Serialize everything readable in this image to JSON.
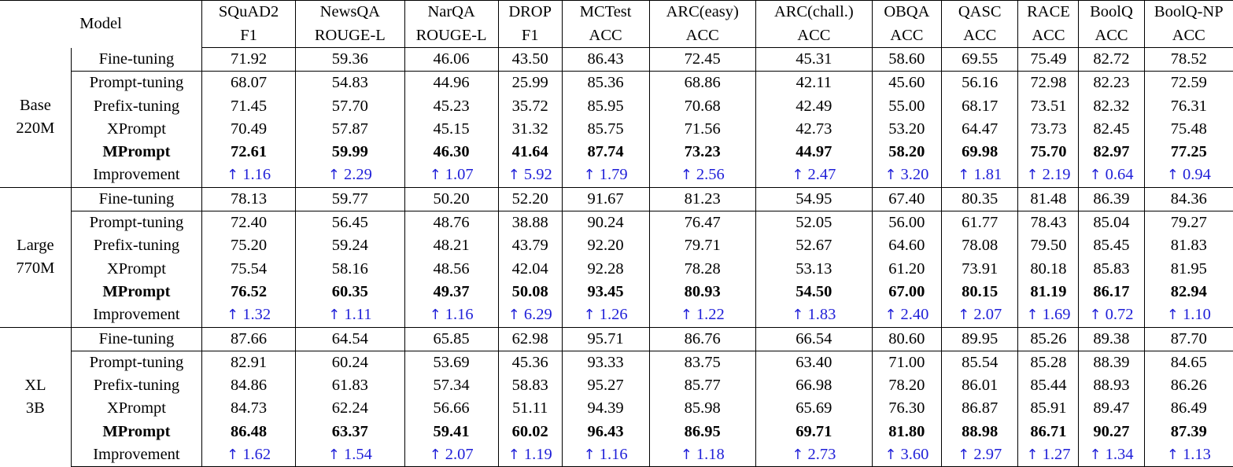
{
  "header": {
    "model_label": "Model",
    "columns": [
      {
        "name": "SQuAD2",
        "metric": "F1"
      },
      {
        "name": "NewsQA",
        "metric": "ROUGE-L"
      },
      {
        "name": "NarQA",
        "metric": "ROUGE-L"
      },
      {
        "name": "DROP",
        "metric": "F1"
      },
      {
        "name": "MCTest",
        "metric": "ACC"
      },
      {
        "name": "ARC(easy)",
        "metric": "ACC"
      },
      {
        "name": "ARC(chall.)",
        "metric": "ACC"
      },
      {
        "name": "OBQA",
        "metric": "ACC"
      },
      {
        "name": "QASC",
        "metric": "ACC"
      },
      {
        "name": "RACE",
        "metric": "ACC"
      },
      {
        "name": "BoolQ",
        "metric": "ACC"
      },
      {
        "name": "BoolQ-NP",
        "metric": "ACC"
      }
    ]
  },
  "arrow_symbol": "↑",
  "groups": [
    {
      "size": "Base",
      "params": "220M",
      "rows": [
        {
          "method": "Fine-tuning",
          "bold": false,
          "improvement": false,
          "values": [
            "71.92",
            "59.36",
            "46.06",
            "43.50",
            "86.43",
            "72.45",
            "45.31",
            "58.60",
            "69.55",
            "75.49",
            "82.72",
            "78.52"
          ]
        },
        {
          "method": "Prompt-tuning",
          "bold": false,
          "improvement": false,
          "values": [
            "68.07",
            "54.83",
            "44.96",
            "25.99",
            "85.36",
            "68.86",
            "42.11",
            "45.60",
            "56.16",
            "72.98",
            "82.23",
            "72.59"
          ]
        },
        {
          "method": "Prefix-tuning",
          "bold": false,
          "improvement": false,
          "values": [
            "71.45",
            "57.70",
            "45.23",
            "35.72",
            "85.95",
            "70.68",
            "42.49",
            "55.00",
            "68.17",
            "73.51",
            "82.32",
            "76.31"
          ]
        },
        {
          "method": "XPrompt",
          "bold": false,
          "improvement": false,
          "values": [
            "70.49",
            "57.87",
            "45.15",
            "31.32",
            "85.75",
            "71.56",
            "42.73",
            "53.20",
            "64.47",
            "73.73",
            "82.45",
            "75.48"
          ]
        },
        {
          "method": "MPrompt",
          "bold": true,
          "improvement": false,
          "values": [
            "72.61",
            "59.99",
            "46.30",
            "41.64",
            "87.74",
            "73.23",
            "44.97",
            "58.20",
            "69.98",
            "75.70",
            "82.97",
            "77.25"
          ]
        },
        {
          "method": "Improvement",
          "bold": false,
          "improvement": true,
          "values": [
            "1.16",
            "2.29",
            "1.07",
            "5.92",
            "1.79",
            "2.56",
            "2.47",
            "3.20",
            "1.81",
            "2.19",
            "0.64",
            "0.94"
          ]
        }
      ]
    },
    {
      "size": "Large",
      "params": "770M",
      "rows": [
        {
          "method": "Fine-tuning",
          "bold": false,
          "improvement": false,
          "values": [
            "78.13",
            "59.77",
            "50.20",
            "52.20",
            "91.67",
            "81.23",
            "54.95",
            "67.40",
            "80.35",
            "81.48",
            "86.39",
            "84.36"
          ]
        },
        {
          "method": "Prompt-tuning",
          "bold": false,
          "improvement": false,
          "values": [
            "72.40",
            "56.45",
            "48.76",
            "38.88",
            "90.24",
            "76.47",
            "52.05",
            "56.00",
            "61.77",
            "78.43",
            "85.04",
            "79.27"
          ]
        },
        {
          "method": "Prefix-tuning",
          "bold": false,
          "improvement": false,
          "values": [
            "75.20",
            "59.24",
            "48.21",
            "43.79",
            "92.20",
            "79.71",
            "52.67",
            "64.60",
            "78.08",
            "79.50",
            "85.45",
            "81.83"
          ]
        },
        {
          "method": "XPrompt",
          "bold": false,
          "improvement": false,
          "values": [
            "75.54",
            "58.16",
            "48.56",
            "42.04",
            "92.28",
            "78.28",
            "53.13",
            "61.20",
            "73.91",
            "80.18",
            "85.83",
            "81.95"
          ]
        },
        {
          "method": "MPrompt",
          "bold": true,
          "improvement": false,
          "values": [
            "76.52",
            "60.35",
            "49.37",
            "50.08",
            "93.45",
            "80.93",
            "54.50",
            "67.00",
            "80.15",
            "81.19",
            "86.17",
            "82.94"
          ]
        },
        {
          "method": "Improvement",
          "bold": false,
          "improvement": true,
          "values": [
            "1.32",
            "1.11",
            "1.16",
            "6.29",
            "1.26",
            "1.22",
            "1.83",
            "2.40",
            "2.07",
            "1.69",
            "0.72",
            "1.10"
          ]
        }
      ]
    },
    {
      "size": "XL",
      "params": "3B",
      "rows": [
        {
          "method": "Fine-tuning",
          "bold": false,
          "improvement": false,
          "values": [
            "87.66",
            "64.54",
            "65.85",
            "62.98",
            "95.71",
            "86.76",
            "66.54",
            "80.60",
            "89.95",
            "85.26",
            "89.38",
            "87.70"
          ]
        },
        {
          "method": "Prompt-tuning",
          "bold": false,
          "improvement": false,
          "values": [
            "82.91",
            "60.24",
            "53.69",
            "45.36",
            "93.33",
            "83.75",
            "63.40",
            "71.00",
            "85.54",
            "85.28",
            "88.39",
            "84.65"
          ]
        },
        {
          "method": "Prefix-tuning",
          "bold": false,
          "improvement": false,
          "values": [
            "84.86",
            "61.83",
            "57.34",
            "58.83",
            "95.27",
            "85.77",
            "66.98",
            "78.20",
            "86.01",
            "85.44",
            "88.93",
            "86.26"
          ]
        },
        {
          "method": "XPrompt",
          "bold": false,
          "improvement": false,
          "values": [
            "84.73",
            "62.24",
            "56.66",
            "51.11",
            "94.39",
            "85.98",
            "65.69",
            "76.30",
            "86.87",
            "85.91",
            "89.47",
            "86.49"
          ]
        },
        {
          "method": "MPrompt",
          "bold": true,
          "improvement": false,
          "values": [
            "86.48",
            "63.37",
            "59.41",
            "60.02",
            "96.43",
            "86.95",
            "69.71",
            "81.80",
            "88.98",
            "86.71",
            "90.27",
            "87.39"
          ]
        },
        {
          "method": "Improvement",
          "bold": false,
          "improvement": true,
          "values": [
            "1.62",
            "1.54",
            "2.07",
            "1.19",
            "1.16",
            "1.18",
            "2.73",
            "3.60",
            "2.97",
            "1.27",
            "1.34",
            "1.13"
          ]
        }
      ]
    }
  ],
  "colors": {
    "text": "#000000",
    "improvement": "#1f1fd8",
    "rule": "#000000",
    "background": "#ffffff"
  }
}
